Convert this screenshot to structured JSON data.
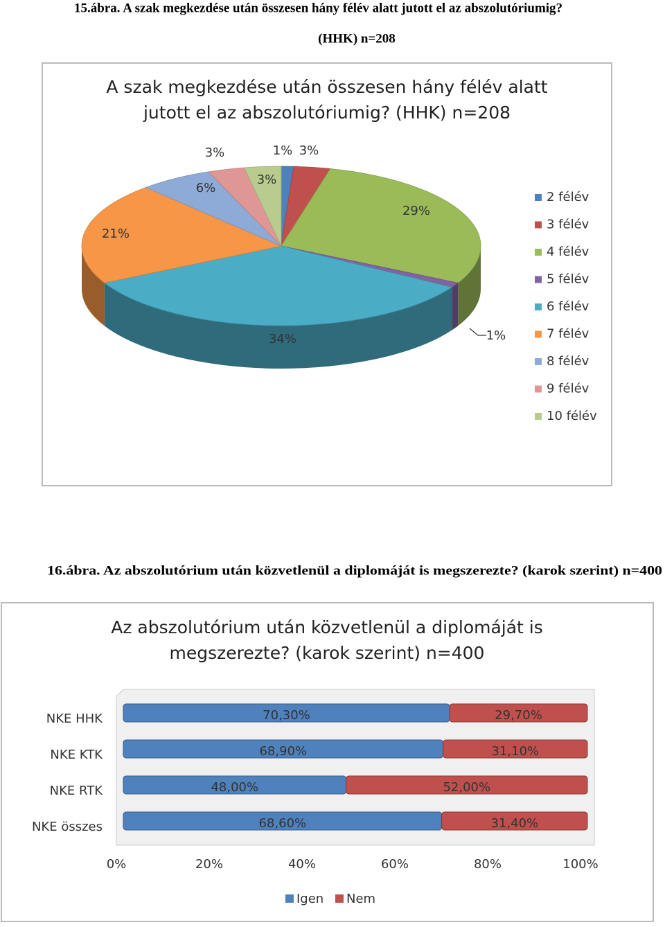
{
  "chart_data": [
    {
      "type": "pie",
      "caption": [
        "15.ábra. A szak megkezdése után összesen hány félév alatt jutott el az abszolutóriumig?",
        "(HHK) n=208"
      ],
      "title": [
        "A szak megkezdése után összesen hány félév alatt",
        "jutott el az abszolutóriumig? (HHK) n=208"
      ],
      "categories": [
        "2 félév",
        "3 félév",
        "4 félév",
        "5 félév",
        "6 félév",
        "7 félév",
        "8 félév",
        "9 félév",
        "10 félév"
      ],
      "values": [
        1,
        3,
        29,
        1,
        34,
        21,
        6,
        3,
        3
      ],
      "value_labels": [
        "1%",
        "3%",
        "29%",
        "1%",
        "34%",
        "21%",
        "6%",
        "3%",
        "3%"
      ],
      "colors": [
        "#4f81bd",
        "#c0504d",
        "#9bbb59",
        "#8064a2",
        "#4bacc6",
        "#f79646",
        "#8eaad6",
        "#de9795",
        "#b7cc8e"
      ],
      "legend": "right"
    },
    {
      "type": "bar",
      "orientation": "horizontal",
      "stacked": true,
      "caption": [
        "16.ábra. Az abszolutórium után közvetlenül a diplomáját is megszerezte? (karok  szerint) n=400"
      ],
      "title": [
        "Az abszolutórium után közvetlenül a diplomáját is",
        "megszerezte? (karok  szerint) n=400"
      ],
      "categories": [
        "NKE HHK",
        "NKE KTK",
        "NKE RTK",
        "NKE összes"
      ],
      "series": [
        {
          "name": "Igen",
          "color": "#4f81bd",
          "values": [
            70.3,
            68.9,
            48.0,
            68.6
          ],
          "value_labels": [
            "70,30%",
            "68,90%",
            "48,00%",
            "68,60%"
          ]
        },
        {
          "name": "Nem",
          "color": "#c0504d",
          "values": [
            29.7,
            31.1,
            52.0,
            31.4
          ],
          "value_labels": [
            "29,70%",
            "31,10%",
            "52,00%",
            "31,40%"
          ]
        }
      ],
      "xlim": [
        0,
        100
      ],
      "xticks": [
        {
          "value": 0,
          "label": "0%"
        },
        {
          "value": 20,
          "label": "20%"
        },
        {
          "value": 40,
          "label": "40%"
        },
        {
          "value": 60,
          "label": "60%"
        },
        {
          "value": 80,
          "label": "80%"
        },
        {
          "value": 100,
          "label": "100%"
        }
      ],
      "legend": "bottom"
    }
  ]
}
